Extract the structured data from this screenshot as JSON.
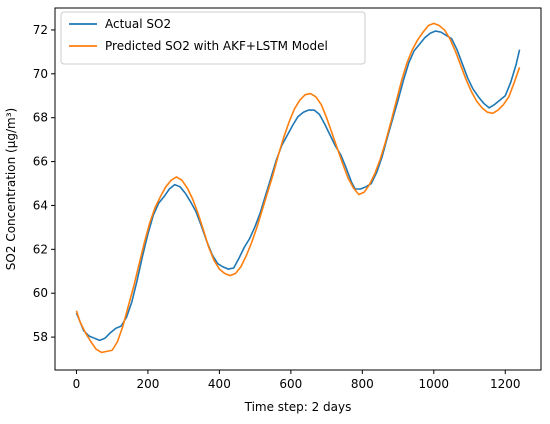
{
  "chart_data": {
    "type": "line",
    "xlabel": "Time step: 2 days",
    "ylabel": "SO2 Concentration (µg/m³)",
    "xlim": [
      -60,
      1300
    ],
    "ylim": [
      56.5,
      73.0
    ],
    "x_ticks": [
      0,
      200,
      400,
      600,
      800,
      1000,
      1200
    ],
    "y_ticks": [
      58,
      60,
      62,
      64,
      66,
      68,
      70,
      72
    ],
    "grid": false,
    "legend_position": "upper-left",
    "series": [
      {
        "name": "Actual SO2",
        "color": "#1f77b4",
        "points": [
          [
            0,
            59.1
          ],
          [
            10,
            58.7
          ],
          [
            20,
            58.3
          ],
          [
            35,
            58.05
          ],
          [
            50,
            57.95
          ],
          [
            65,
            57.85
          ],
          [
            80,
            57.95
          ],
          [
            95,
            58.2
          ],
          [
            110,
            58.4
          ],
          [
            125,
            58.5
          ],
          [
            140,
            58.9
          ],
          [
            155,
            59.6
          ],
          [
            170,
            60.6
          ],
          [
            185,
            61.7
          ],
          [
            200,
            62.7
          ],
          [
            215,
            63.55
          ],
          [
            230,
            64.1
          ],
          [
            245,
            64.4
          ],
          [
            260,
            64.75
          ],
          [
            275,
            64.95
          ],
          [
            290,
            64.85
          ],
          [
            305,
            64.55
          ],
          [
            320,
            64.15
          ],
          [
            335,
            63.7
          ],
          [
            350,
            63.05
          ],
          [
            365,
            62.35
          ],
          [
            380,
            61.75
          ],
          [
            395,
            61.35
          ],
          [
            410,
            61.2
          ],
          [
            425,
            61.1
          ],
          [
            440,
            61.15
          ],
          [
            455,
            61.6
          ],
          [
            470,
            62.1
          ],
          [
            485,
            62.5
          ],
          [
            500,
            63.05
          ],
          [
            515,
            63.7
          ],
          [
            530,
            64.5
          ],
          [
            545,
            65.3
          ],
          [
            560,
            66.1
          ],
          [
            575,
            66.75
          ],
          [
            590,
            67.2
          ],
          [
            605,
            67.65
          ],
          [
            620,
            68.05
          ],
          [
            635,
            68.25
          ],
          [
            650,
            68.35
          ],
          [
            665,
            68.35
          ],
          [
            680,
            68.15
          ],
          [
            695,
            67.7
          ],
          [
            710,
            67.2
          ],
          [
            725,
            66.7
          ],
          [
            740,
            66.3
          ],
          [
            755,
            65.7
          ],
          [
            770,
            65.05
          ],
          [
            780,
            64.75
          ],
          [
            795,
            64.75
          ],
          [
            810,
            64.85
          ],
          [
            825,
            65.0
          ],
          [
            840,
            65.5
          ],
          [
            855,
            66.2
          ],
          [
            870,
            67.1
          ],
          [
            885,
            67.95
          ],
          [
            900,
            68.8
          ],
          [
            915,
            69.7
          ],
          [
            930,
            70.5
          ],
          [
            945,
            71.05
          ],
          [
            960,
            71.35
          ],
          [
            975,
            71.65
          ],
          [
            990,
            71.85
          ],
          [
            1005,
            71.95
          ],
          [
            1020,
            71.9
          ],
          [
            1035,
            71.75
          ],
          [
            1050,
            71.6
          ],
          [
            1065,
            71.1
          ],
          [
            1080,
            70.45
          ],
          [
            1095,
            69.8
          ],
          [
            1110,
            69.3
          ],
          [
            1125,
            68.95
          ],
          [
            1140,
            68.65
          ],
          [
            1155,
            68.45
          ],
          [
            1170,
            68.6
          ],
          [
            1185,
            68.8
          ],
          [
            1200,
            69.0
          ],
          [
            1215,
            69.6
          ],
          [
            1230,
            70.4
          ],
          [
            1240,
            71.1
          ]
        ]
      },
      {
        "name": "Predicted SO2 with AKF+LSTM Model",
        "color": "#ff7f0e",
        "points": [
          [
            0,
            59.2
          ],
          [
            10,
            58.7
          ],
          [
            25,
            58.2
          ],
          [
            40,
            57.8
          ],
          [
            55,
            57.45
          ],
          [
            70,
            57.3
          ],
          [
            85,
            57.35
          ],
          [
            100,
            57.4
          ],
          [
            115,
            57.8
          ],
          [
            130,
            58.5
          ],
          [
            145,
            59.4
          ],
          [
            160,
            60.3
          ],
          [
            175,
            61.3
          ],
          [
            190,
            62.3
          ],
          [
            205,
            63.2
          ],
          [
            220,
            63.9
          ],
          [
            235,
            64.4
          ],
          [
            250,
            64.85
          ],
          [
            265,
            65.15
          ],
          [
            280,
            65.3
          ],
          [
            295,
            65.15
          ],
          [
            310,
            64.8
          ],
          [
            325,
            64.3
          ],
          [
            340,
            63.65
          ],
          [
            355,
            62.9
          ],
          [
            370,
            62.1
          ],
          [
            385,
            61.5
          ],
          [
            400,
            61.1
          ],
          [
            415,
            60.9
          ],
          [
            430,
            60.8
          ],
          [
            445,
            60.9
          ],
          [
            460,
            61.2
          ],
          [
            475,
            61.7
          ],
          [
            490,
            62.3
          ],
          [
            505,
            63.0
          ],
          [
            520,
            63.8
          ],
          [
            535,
            64.6
          ],
          [
            550,
            65.4
          ],
          [
            565,
            66.3
          ],
          [
            580,
            67.1
          ],
          [
            595,
            67.8
          ],
          [
            610,
            68.4
          ],
          [
            625,
            68.8
          ],
          [
            640,
            69.05
          ],
          [
            655,
            69.1
          ],
          [
            670,
            68.95
          ],
          [
            685,
            68.6
          ],
          [
            700,
            68.0
          ],
          [
            715,
            67.3
          ],
          [
            730,
            66.6
          ],
          [
            745,
            65.9
          ],
          [
            760,
            65.25
          ],
          [
            775,
            64.8
          ],
          [
            790,
            64.5
          ],
          [
            805,
            64.6
          ],
          [
            820,
            64.95
          ],
          [
            835,
            65.45
          ],
          [
            850,
            66.1
          ],
          [
            865,
            66.9
          ],
          [
            880,
            67.8
          ],
          [
            895,
            68.75
          ],
          [
            910,
            69.7
          ],
          [
            925,
            70.5
          ],
          [
            940,
            71.1
          ],
          [
            955,
            71.55
          ],
          [
            970,
            71.9
          ],
          [
            985,
            72.2
          ],
          [
            1000,
            72.3
          ],
          [
            1015,
            72.2
          ],
          [
            1030,
            72.0
          ],
          [
            1045,
            71.6
          ],
          [
            1060,
            71.05
          ],
          [
            1075,
            70.4
          ],
          [
            1090,
            69.75
          ],
          [
            1105,
            69.2
          ],
          [
            1120,
            68.75
          ],
          [
            1135,
            68.45
          ],
          [
            1150,
            68.25
          ],
          [
            1165,
            68.2
          ],
          [
            1180,
            68.35
          ],
          [
            1195,
            68.6
          ],
          [
            1210,
            68.95
          ],
          [
            1225,
            69.6
          ],
          [
            1240,
            70.3
          ]
        ]
      }
    ]
  }
}
